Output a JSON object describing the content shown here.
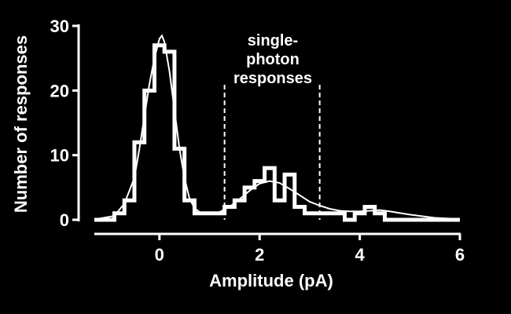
{
  "chart_data": {
    "type": "bar",
    "xlabel": "Amplitude (pA)",
    "ylabel": "Number of responses",
    "xlim": [
      -1.3,
      6.0
    ],
    "ylim": [
      0,
      30
    ],
    "x_ticks": [
      0,
      2,
      4,
      6
    ],
    "y_ticks": [
      0,
      10,
      20,
      30
    ],
    "bin_width": 0.2,
    "histogram": {
      "bin_edges": [
        -1.3,
        -0.9,
        -0.7,
        -0.5,
        -0.3,
        -0.1,
        0.1,
        0.3,
        0.5,
        0.7,
        0.9,
        1.1,
        1.3,
        1.5,
        1.7,
        1.9,
        2.1,
        2.3,
        2.5,
        2.7,
        2.9,
        3.1,
        3.3,
        3.5,
        3.7,
        3.9,
        4.1,
        4.3,
        4.5,
        4.7,
        6.0
      ],
      "counts": [
        0,
        1,
        3,
        12,
        20,
        27,
        26,
        11,
        3,
        1,
        1,
        1,
        2,
        3,
        5,
        6,
        8,
        3,
        7,
        2,
        1,
        1,
        1,
        1,
        0,
        1,
        2,
        1,
        0,
        0
      ]
    },
    "fit_curve": {
      "x": [
        -1.2,
        -0.9,
        -0.7,
        -0.5,
        -0.4,
        -0.3,
        -0.2,
        -0.1,
        0.0,
        0.05,
        0.1,
        0.2,
        0.3,
        0.4,
        0.5,
        0.6,
        0.7,
        0.8,
        0.9,
        1.0,
        1.1,
        1.2,
        1.4,
        1.6,
        1.8,
        2.0,
        2.2,
        2.4,
        2.6,
        2.8,
        3.0,
        3.2,
        3.4,
        3.6,
        3.8,
        4.0,
        4.2,
        4.4,
        4.6,
        5.0,
        5.5,
        6.0
      ],
      "y": [
        0.2,
        0.6,
        2.5,
        6.5,
        11,
        16,
        21,
        25,
        28,
        28.5,
        27.5,
        23,
        17,
        11,
        6.5,
        3.3,
        1.8,
        1.2,
        1.0,
        0.9,
        1.0,
        1.2,
        2.0,
        3.2,
        4.5,
        5.6,
        6.0,
        5.7,
        4.8,
        3.8,
        2.8,
        2.2,
        1.7,
        1.4,
        1.3,
        1.3,
        1.4,
        1.5,
        1.3,
        0.8,
        0.3,
        0.1
      ]
    },
    "annotation": {
      "lines": [
        "single-",
        "photon",
        "responses"
      ],
      "bracket_x": [
        1.3,
        3.2
      ]
    }
  }
}
